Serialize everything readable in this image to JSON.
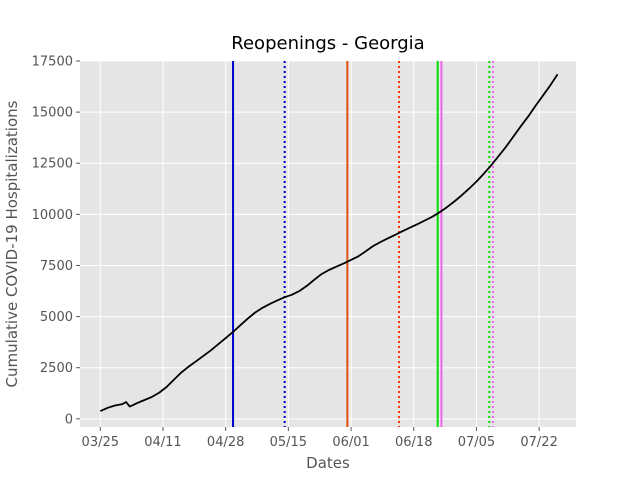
{
  "chart_data": {
    "type": "line",
    "title": "Reopenings - Georgia",
    "xlabel": "Dates",
    "ylabel": "Cumulative COVID-19 Hospitalizations",
    "grid": true,
    "x_tick_labels": [
      "03/25",
      "04/11",
      "04/28",
      "05/15",
      "06/01",
      "06/18",
      "07/05",
      "07/22"
    ],
    "x_tick_days": [
      0,
      17,
      34,
      51,
      68,
      85,
      102,
      119
    ],
    "xlim_days": [
      -5.5,
      129
    ],
    "y_ticks": [
      0,
      2500,
      5000,
      7500,
      10000,
      12500,
      15000,
      17500
    ],
    "y_tick_labels": [
      "0",
      "2500",
      "5000",
      "7500",
      "10000",
      "12500",
      "15000",
      "17500"
    ],
    "ylim": [
      -400,
      17500
    ],
    "series": [
      {
        "color": "#000000",
        "x_days": [
          0,
          2,
          4,
          6,
          7,
          8,
          10,
          12,
          14,
          16,
          18,
          20,
          22,
          24,
          26,
          28,
          30,
          32,
          34,
          36,
          38,
          40,
          42,
          44,
          46,
          48,
          50,
          52,
          54,
          56,
          58,
          60,
          62,
          64,
          66,
          68,
          70,
          72,
          74,
          76,
          78,
          80,
          82,
          84,
          86,
          88,
          90,
          92,
          94,
          96,
          98,
          100,
          102,
          104,
          106,
          108,
          110,
          112,
          114,
          116,
          118,
          120,
          122,
          124
        ],
        "y": [
          380,
          540,
          650,
          720,
          820,
          600,
          770,
          920,
          1070,
          1280,
          1560,
          1920,
          2270,
          2560,
          2820,
          3080,
          3350,
          3650,
          3950,
          4250,
          4580,
          4900,
          5200,
          5430,
          5620,
          5790,
          5950,
          6070,
          6250,
          6500,
          6800,
          7080,
          7280,
          7440,
          7600,
          7770,
          7950,
          8200,
          8450,
          8650,
          8830,
          9000,
          9180,
          9350,
          9520,
          9700,
          9880,
          10100,
          10350,
          10630,
          10930,
          11260,
          11600,
          11990,
          12400,
          12850,
          13300,
          13800,
          14300,
          14780,
          15300,
          15800,
          16300,
          16850
        ]
      }
    ],
    "vlines": [
      {
        "x_day": 36,
        "color": "#0000cc",
        "style": "solid"
      },
      {
        "x_day": 50,
        "color": "#0000cc",
        "style": "dotted"
      },
      {
        "x_day": 67,
        "color": "#e05010",
        "style": "solid"
      },
      {
        "x_day": 81,
        "color": "#ff3300",
        "style": "dotted"
      },
      {
        "x_day": 91.5,
        "color": "#00e000",
        "style": "solid"
      },
      {
        "x_day": 92.5,
        "color": "#ee66ee",
        "style": "solid"
      },
      {
        "x_day": 105.5,
        "color": "#00e000",
        "style": "dotted"
      },
      {
        "x_day": 106.5,
        "color": "#ee66ee",
        "style": "dotted"
      }
    ]
  }
}
